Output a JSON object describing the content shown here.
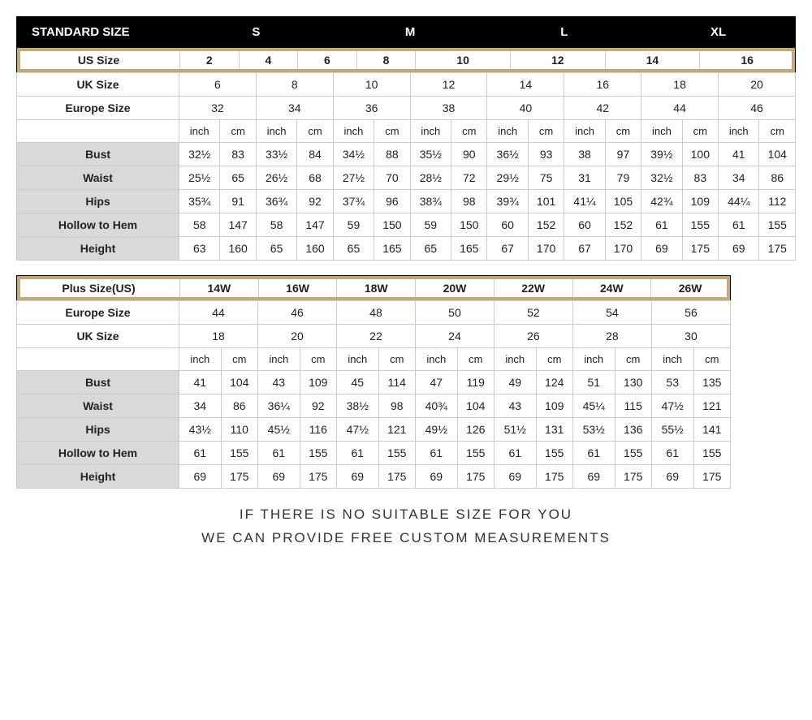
{
  "t1": {
    "header": {
      "label": "STANDARD SIZE",
      "groups": [
        "S",
        "M",
        "L",
        "XL"
      ]
    },
    "us": {
      "label": "US Size",
      "vals": [
        "2",
        "4",
        "6",
        "8",
        "10",
        "12",
        "14",
        "16"
      ]
    },
    "uk": {
      "label": "UK Size",
      "vals": [
        "6",
        "8",
        "10",
        "12",
        "14",
        "16",
        "18",
        "20"
      ]
    },
    "eu": {
      "label": "Europe Size",
      "vals": [
        "32",
        "34",
        "36",
        "38",
        "40",
        "42",
        "44",
        "46"
      ]
    },
    "units": [
      "inch",
      "cm",
      "inch",
      "cm",
      "inch",
      "cm",
      "inch",
      "cm",
      "inch",
      "cm",
      "inch",
      "cm",
      "inch",
      "cm",
      "inch",
      "cm"
    ],
    "rows": [
      {
        "label": "Bust",
        "vals": [
          "32½",
          "83",
          "33½",
          "84",
          "34½",
          "88",
          "35½",
          "90",
          "36½",
          "93",
          "38",
          "97",
          "39½",
          "100",
          "41",
          "104"
        ]
      },
      {
        "label": "Waist",
        "vals": [
          "25½",
          "65",
          "26½",
          "68",
          "27½",
          "70",
          "28½",
          "72",
          "29½",
          "75",
          "31",
          "79",
          "32½",
          "83",
          "34",
          "86"
        ]
      },
      {
        "label": "Hips",
        "vals": [
          "35¾",
          "91",
          "36¾",
          "92",
          "37¾",
          "96",
          "38¾",
          "98",
          "39¾",
          "101",
          "41¼",
          "105",
          "42¾",
          "109",
          "44¼",
          "112"
        ]
      },
      {
        "label": "Hollow to Hem",
        "vals": [
          "58",
          "147",
          "58",
          "147",
          "59",
          "150",
          "59",
          "150",
          "60",
          "152",
          "60",
          "152",
          "61",
          "155",
          "61",
          "155"
        ]
      },
      {
        "label": "Height",
        "vals": [
          "63",
          "160",
          "65",
          "160",
          "65",
          "165",
          "65",
          "165",
          "67",
          "170",
          "67",
          "170",
          "69",
          "175",
          "69",
          "175"
        ]
      }
    ]
  },
  "t2": {
    "plus": {
      "label": "Plus Size(US)",
      "vals": [
        "14W",
        "16W",
        "18W",
        "20W",
        "22W",
        "24W",
        "26W"
      ]
    },
    "eu": {
      "label": "Europe Size",
      "vals": [
        "44",
        "46",
        "48",
        "50",
        "52",
        "54",
        "56"
      ]
    },
    "uk": {
      "label": "UK Size",
      "vals": [
        "18",
        "20",
        "22",
        "24",
        "26",
        "28",
        "30"
      ]
    },
    "units": [
      "inch",
      "cm",
      "inch",
      "cm",
      "inch",
      "cm",
      "inch",
      "cm",
      "inch",
      "cm",
      "inch",
      "cm",
      "inch",
      "cm"
    ],
    "rows": [
      {
        "label": "Bust",
        "vals": [
          "41",
          "104",
          "43",
          "109",
          "45",
          "114",
          "47",
          "119",
          "49",
          "124",
          "51",
          "130",
          "53",
          "135"
        ]
      },
      {
        "label": "Waist",
        "vals": [
          "34",
          "86",
          "36¼",
          "92",
          "38½",
          "98",
          "40¾",
          "104",
          "43",
          "109",
          "45¼",
          "115",
          "47½",
          "121"
        ]
      },
      {
        "label": "Hips",
        "vals": [
          "43½",
          "110",
          "45½",
          "116",
          "47½",
          "121",
          "49½",
          "126",
          "51½",
          "131",
          "53½",
          "136",
          "55½",
          "141"
        ]
      },
      {
        "label": "Hollow to Hem",
        "vals": [
          "61",
          "155",
          "61",
          "155",
          "61",
          "155",
          "61",
          "155",
          "61",
          "155",
          "61",
          "155",
          "61",
          "155"
        ]
      },
      {
        "label": "Height",
        "vals": [
          "69",
          "175",
          "69",
          "175",
          "69",
          "175",
          "69",
          "175",
          "69",
          "175",
          "69",
          "175",
          "69",
          "175"
        ]
      }
    ]
  },
  "footer": {
    "line1": "IF THERE IS NO SUITABLE SIZE FOR YOU",
    "line2": "WE CAN PROVIDE FREE CUSTOM MEASUREMENTS"
  },
  "style": {
    "highlight_border": "#c0a97a",
    "header_bg": "#000000",
    "header_fg": "#ffffff",
    "gray_bg": "#d9d9d9",
    "border_color": "#cccccc",
    "text_color": "#222222"
  }
}
